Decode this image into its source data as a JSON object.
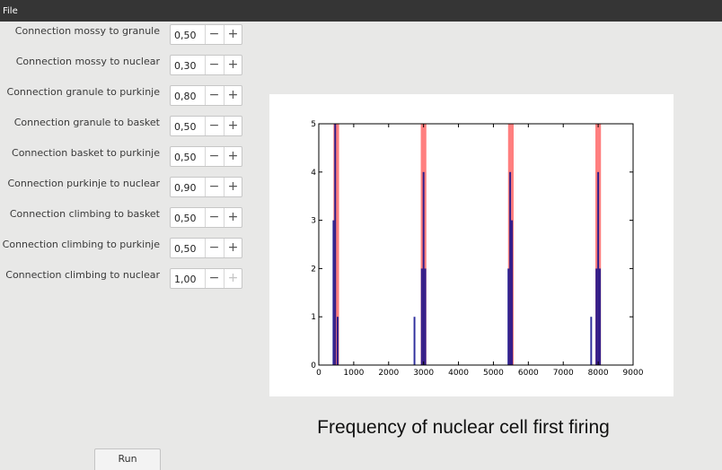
{
  "menubar": {
    "file_label": "File"
  },
  "params": [
    {
      "label": "Connection mossy to granule",
      "value": "0,50",
      "plus_enabled": true
    },
    {
      "label": "Connection mossy to nuclear",
      "value": "0,30",
      "plus_enabled": true
    },
    {
      "label": "Connection granule to purkinje",
      "value": "0,80",
      "plus_enabled": true
    },
    {
      "label": "Connection granule to basket",
      "value": "0,50",
      "plus_enabled": true
    },
    {
      "label": "Connection basket to purkinje",
      "value": "0,50",
      "plus_enabled": true
    },
    {
      "label": "Connection purkinje to nuclear",
      "value": "0,90",
      "plus_enabled": true
    },
    {
      "label": "Connection climbing to basket",
      "value": "0,50",
      "plus_enabled": true
    },
    {
      "label": "Connection climbing to purkinje",
      "value": "0,50",
      "plus_enabled": true
    },
    {
      "label": "Connection climbing to nuclear",
      "value": "1,00",
      "plus_enabled": false
    }
  ],
  "spin_symbols": {
    "minus": "−",
    "plus": "+"
  },
  "caption": "Frequency of nuclear cell first firing",
  "run_label": "Run",
  "chart_data": {
    "type": "bar",
    "xlim": [
      0,
      9000
    ],
    "ylim": [
      0,
      5
    ],
    "xticks": [
      0,
      1000,
      2000,
      3000,
      4000,
      5000,
      6000,
      7000,
      8000,
      9000
    ],
    "yticks": [
      0,
      1,
      2,
      3,
      4,
      5
    ],
    "grid": false,
    "title": "",
    "xlabel": "",
    "ylabel": "",
    "series": [
      {
        "color": "#ff7f7f",
        "bars": [
          {
            "x": 500,
            "width": 160,
            "value": 5
          },
          {
            "x": 3000,
            "width": 160,
            "value": 5
          },
          {
            "x": 5500,
            "width": 160,
            "value": 5
          },
          {
            "x": 8000,
            "width": 160,
            "value": 5
          }
        ]
      },
      {
        "color": "#0a0a8c",
        "bars": [
          {
            "x": 420,
            "width": 50,
            "value": 3
          },
          {
            "x": 470,
            "width": 50,
            "value": 5
          },
          {
            "x": 540,
            "width": 50,
            "value": 1
          },
          {
            "x": 2740,
            "width": 50,
            "value": 1
          },
          {
            "x": 2950,
            "width": 50,
            "value": 2
          },
          {
            "x": 3000,
            "width": 50,
            "value": 4
          },
          {
            "x": 3050,
            "width": 50,
            "value": 2
          },
          {
            "x": 5430,
            "width": 50,
            "value": 2
          },
          {
            "x": 5480,
            "width": 50,
            "value": 4
          },
          {
            "x": 5530,
            "width": 50,
            "value": 3
          },
          {
            "x": 7800,
            "width": 50,
            "value": 1
          },
          {
            "x": 7950,
            "width": 50,
            "value": 2
          },
          {
            "x": 8000,
            "width": 50,
            "value": 4
          },
          {
            "x": 8050,
            "width": 50,
            "value": 2
          }
        ]
      }
    ]
  }
}
